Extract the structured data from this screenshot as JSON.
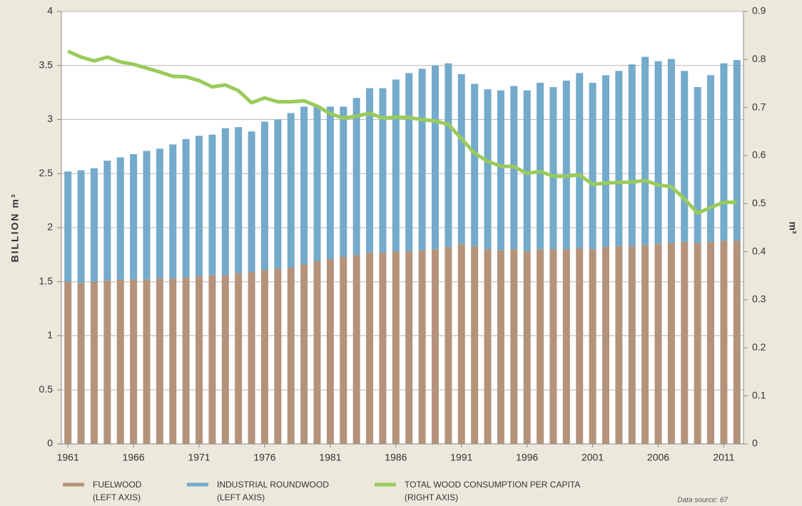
{
  "chart_data": {
    "type": "bar",
    "categories": [
      "1961",
      null,
      null,
      null,
      null,
      "1966",
      null,
      null,
      null,
      null,
      "1971",
      null,
      null,
      null,
      null,
      "1976",
      null,
      null,
      null,
      null,
      "1981",
      null,
      null,
      null,
      null,
      "1986",
      null,
      null,
      null,
      null,
      "1991",
      null,
      null,
      null,
      null,
      "1996",
      null,
      null,
      null,
      null,
      "2001",
      null,
      null,
      null,
      null,
      "2006",
      null,
      null,
      null,
      null,
      "2011",
      null
    ],
    "series": [
      {
        "name": "FUELWOOD",
        "axis_note": "(LEFT AXIS)",
        "color": "#b4937a",
        "type": "bar",
        "values": [
          1.5,
          1.49,
          1.5,
          1.51,
          1.52,
          1.52,
          1.52,
          1.53,
          1.53,
          1.54,
          1.55,
          1.56,
          1.56,
          1.58,
          1.59,
          1.61,
          1.62,
          1.63,
          1.66,
          1.69,
          1.71,
          1.73,
          1.75,
          1.77,
          1.77,
          1.78,
          1.78,
          1.79,
          1.8,
          1.82,
          1.85,
          1.83,
          1.8,
          1.79,
          1.8,
          1.78,
          1.8,
          1.8,
          1.8,
          1.81,
          1.8,
          1.82,
          1.83,
          1.83,
          1.84,
          1.85,
          1.86,
          1.87,
          1.86,
          1.87,
          1.88,
          1.88
        ]
      },
      {
        "name": "INDUSTRIAL ROUNDWOOD",
        "axis_note": "(LEFT AXIS)",
        "color": "#74aacb",
        "type": "bar",
        "values": [
          1.02,
          1.04,
          1.05,
          1.11,
          1.13,
          1.16,
          1.19,
          1.2,
          1.24,
          1.28,
          1.3,
          1.3,
          1.36,
          1.35,
          1.3,
          1.37,
          1.38,
          1.43,
          1.46,
          1.44,
          1.41,
          1.39,
          1.45,
          1.52,
          1.52,
          1.59,
          1.65,
          1.68,
          1.7,
          1.7,
          1.57,
          1.5,
          1.48,
          1.48,
          1.51,
          1.49,
          1.54,
          1.5,
          1.56,
          1.62,
          1.54,
          1.59,
          1.62,
          1.68,
          1.74,
          1.69,
          1.7,
          1.58,
          1.44,
          1.54,
          1.64,
          1.67
        ]
      },
      {
        "name": "TOTAL WOOD CONSUMPTION PER CAPITA",
        "axis_note": "(RIGHT AXIS)",
        "color": "#9acb5b",
        "type": "line",
        "axis": "y2",
        "values": [
          0.817,
          0.805,
          0.797,
          0.805,
          0.795,
          0.79,
          0.782,
          0.774,
          0.765,
          0.764,
          0.756,
          0.743,
          0.747,
          0.735,
          0.71,
          0.72,
          0.712,
          0.712,
          0.714,
          0.703,
          0.687,
          0.678,
          0.682,
          0.688,
          0.678,
          0.68,
          0.679,
          0.675,
          0.672,
          0.665,
          0.635,
          0.605,
          0.588,
          0.578,
          0.577,
          0.563,
          0.567,
          0.557,
          0.557,
          0.56,
          0.54,
          0.543,
          0.544,
          0.545,
          0.548,
          0.539,
          0.535,
          0.51,
          0.48,
          0.492,
          0.503,
          0.503
        ]
      }
    ],
    "y_label": "BILLION m³",
    "y2_label": "m³",
    "ylim": [
      0,
      4
    ],
    "yticks": [
      0,
      0.5,
      1,
      1.5,
      2,
      2.5,
      3,
      3.5,
      4
    ],
    "y2lim": [
      0,
      0.9
    ],
    "y2ticks": [
      0,
      0.1,
      0.2,
      0.3,
      0.4,
      0.5,
      0.6,
      0.7,
      0.8,
      0.9
    ],
    "grid": true,
    "stacked": true,
    "legend": "bottom",
    "source": "Data source: 67"
  }
}
